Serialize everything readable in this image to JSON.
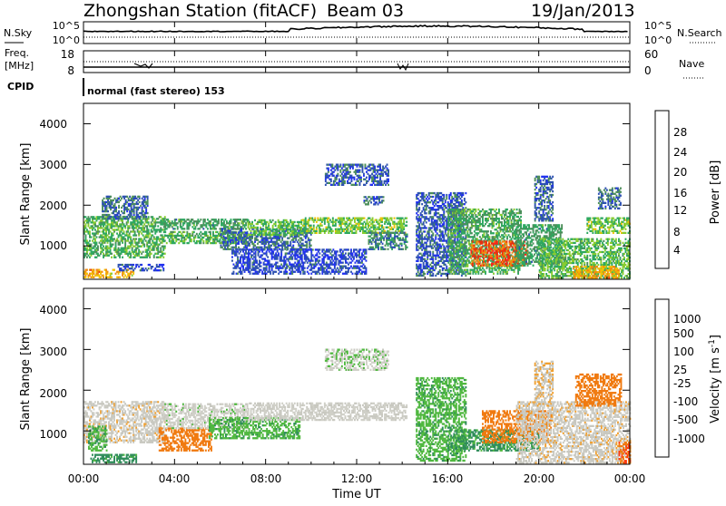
{
  "header": {
    "station": "Zhongshan Station (fitACF)",
    "beam": "Beam 03",
    "date": "19/Jan/2013"
  },
  "noise_panel": {
    "left_label": "N.Sky",
    "right_label": "N.Search",
    "left_ticks": [
      "10^5",
      "10^0"
    ],
    "right_ticks": [
      "10^5",
      "10^0"
    ]
  },
  "freq_panel": {
    "left_label_line1": "Freq.",
    "left_label_line2": "[MHz]",
    "right_label": "Nave",
    "left_ticks": [
      "18",
      "8"
    ],
    "right_ticks": [
      "60",
      "0"
    ]
  },
  "cpid_panel": {
    "label": "CPID",
    "mode_text": "normal (fast stereo) 153"
  },
  "time_axis": {
    "label": "Time UT",
    "ticks": [
      "00:00",
      "04:00",
      "08:00",
      "12:00",
      "16:00",
      "20:00",
      "00:00"
    ]
  },
  "range_axis": {
    "label": "Slant Range [km]",
    "ticks": [
      "1000",
      "2000",
      "3000",
      "4000"
    ]
  },
  "colors": {
    "power": [
      "#2030f0",
      "#2e52b0",
      "#4c8e5a",
      "#2ea860",
      "#88cc30",
      "#f2c000",
      "#f08a10",
      "#e83010",
      "#ff2020"
    ],
    "velocity": [
      "#e81010",
      "#ff3a10",
      "#f07a10",
      "#f0a030",
      "#c8c8c0",
      "#d0d0c8",
      "#50b840",
      "#2e8c5a",
      "#3a6cb8",
      "#2a3cc8"
    ]
  },
  "power_colorbar": {
    "label": "Power [dB]",
    "ticks": [
      "4",
      "8",
      "12",
      "16",
      "20",
      "24",
      "28"
    ]
  },
  "velocity_colorbar": {
    "label": "Velocity [m s",
    "label_exp": "-1",
    "label_end": "]",
    "ticks": [
      "-1000",
      "-500",
      "-100",
      "-25",
      "25",
      "100",
      "500",
      "1000"
    ]
  },
  "chart_data": [
    {
      "type": "heatmap",
      "panel": "power",
      "xlabel": "Time UT",
      "ylabel": "Slant Range [km]",
      "xlim": [
        0,
        24
      ],
      "ylim": [
        180,
        4500
      ],
      "colorbar": {
        "label": "Power [dB]",
        "range": [
          0,
          30
        ]
      },
      "series": [
        {
          "t": [
            0,
            3.6
          ],
          "r": [
            700,
            1700
          ],
          "value": 12
        },
        {
          "t": [
            0.8,
            2.8
          ],
          "r": [
            1650,
            2200
          ],
          "value": 6
        },
        {
          "t": [
            0,
            2.2
          ],
          "r": [
            210,
            430
          ],
          "value": 20
        },
        {
          "t": [
            1.5,
            3.5
          ],
          "r": [
            380,
            520
          ],
          "value": 4
        },
        {
          "t": [
            3.5,
            7.2
          ],
          "r": [
            1050,
            1350
          ],
          "value": 12
        },
        {
          "t": [
            3.5,
            7.2
          ],
          "r": [
            1400,
            1650
          ],
          "value": 10
        },
        {
          "t": [
            6.0,
            10.0
          ],
          "r": [
            900,
            1400
          ],
          "value": 6
        },
        {
          "t": [
            6.5,
            12.4
          ],
          "r": [
            300,
            900
          ],
          "value": 4
        },
        {
          "t": [
            7.2,
            9.6
          ],
          "r": [
            1250,
            1650
          ],
          "value": 13
        },
        {
          "t": [
            9.6,
            14.2
          ],
          "r": [
            1300,
            1700
          ],
          "value": 14
        },
        {
          "t": [
            12.5,
            14.2
          ],
          "r": [
            900,
            1350
          ],
          "value": 8
        },
        {
          "t": [
            10.6,
            13.4
          ],
          "r": [
            2480,
            3000
          ],
          "value": 5
        },
        {
          "t": [
            12.3,
            13.2
          ],
          "r": [
            2000,
            2200
          ],
          "value": 6
        },
        {
          "t": [
            14.6,
            16.8
          ],
          "r": [
            250,
            2300
          ],
          "value": 5
        },
        {
          "t": [
            16.0,
            19.2
          ],
          "r": [
            300,
            1900
          ],
          "value": 11
        },
        {
          "t": [
            17.0,
            19.5
          ],
          "r": [
            500,
            1100
          ],
          "value": 24
        },
        {
          "t": [
            19.0,
            21.0
          ],
          "r": [
            500,
            1500
          ],
          "value": 10
        },
        {
          "t": [
            20.0,
            24.0
          ],
          "r": [
            200,
            1150
          ],
          "value": 13
        },
        {
          "t": [
            21.5,
            23.5
          ],
          "r": [
            200,
            500
          ],
          "value": 20
        },
        {
          "t": [
            22.1,
            24.0
          ],
          "r": [
            1300,
            1700
          ],
          "value": 14
        },
        {
          "t": [
            22.6,
            23.6
          ],
          "r": [
            1900,
            2400
          ],
          "value": 6
        },
        {
          "t": [
            19.8,
            20.6
          ],
          "r": [
            1600,
            2700
          ],
          "value": 6
        }
      ]
    },
    {
      "type": "heatmap",
      "panel": "velocity",
      "xlabel": "Time UT",
      "ylabel": "Slant Range [km]",
      "xlim": [
        0,
        24
      ],
      "ylim": [
        180,
        4500
      ],
      "colorbar": {
        "label": "Velocity [m s-1]",
        "range": [
          -1000,
          1000
        ]
      },
      "series": [
        {
          "t": [
            0,
            3.6
          ],
          "r": [
            700,
            1700
          ],
          "value": -10
        },
        {
          "t": [
            0.3,
            2.3
          ],
          "r": [
            210,
            430
          ],
          "value": 150
        },
        {
          "t": [
            0.2,
            1.0
          ],
          "r": [
            500,
            1100
          ],
          "value": 80
        },
        {
          "t": [
            3.3,
            5.6
          ],
          "r": [
            500,
            1050
          ],
          "value": -300
        },
        {
          "t": [
            3.5,
            7.2
          ],
          "r": [
            1050,
            1650
          ],
          "value": 10
        },
        {
          "t": [
            5.5,
            9.5
          ],
          "r": [
            800,
            1300
          ],
          "value": 80
        },
        {
          "t": [
            7.2,
            14.2
          ],
          "r": [
            1250,
            1700
          ],
          "value": 5
        },
        {
          "t": [
            10.6,
            13.4
          ],
          "r": [
            2480,
            3000
          ],
          "value": 15
        },
        {
          "t": [
            14.6,
            16.8
          ],
          "r": [
            250,
            2300
          ],
          "value": 80
        },
        {
          "t": [
            16.0,
            20.0
          ],
          "r": [
            500,
            1000
          ],
          "value": 120
        },
        {
          "t": [
            17.5,
            20.5
          ],
          "r": [
            700,
            1500
          ],
          "value": -200
        },
        {
          "t": [
            19.0,
            24.0
          ],
          "r": [
            200,
            1700
          ],
          "value": -10
        },
        {
          "t": [
            19.8,
            20.6
          ],
          "r": [
            1600,
            2700
          ],
          "value": -20
        },
        {
          "t": [
            21.6,
            23.6
          ],
          "r": [
            1600,
            2400
          ],
          "value": -300
        },
        {
          "t": [
            23.5,
            24.0
          ],
          "r": [
            200,
            700
          ],
          "value": -500
        }
      ]
    }
  ]
}
